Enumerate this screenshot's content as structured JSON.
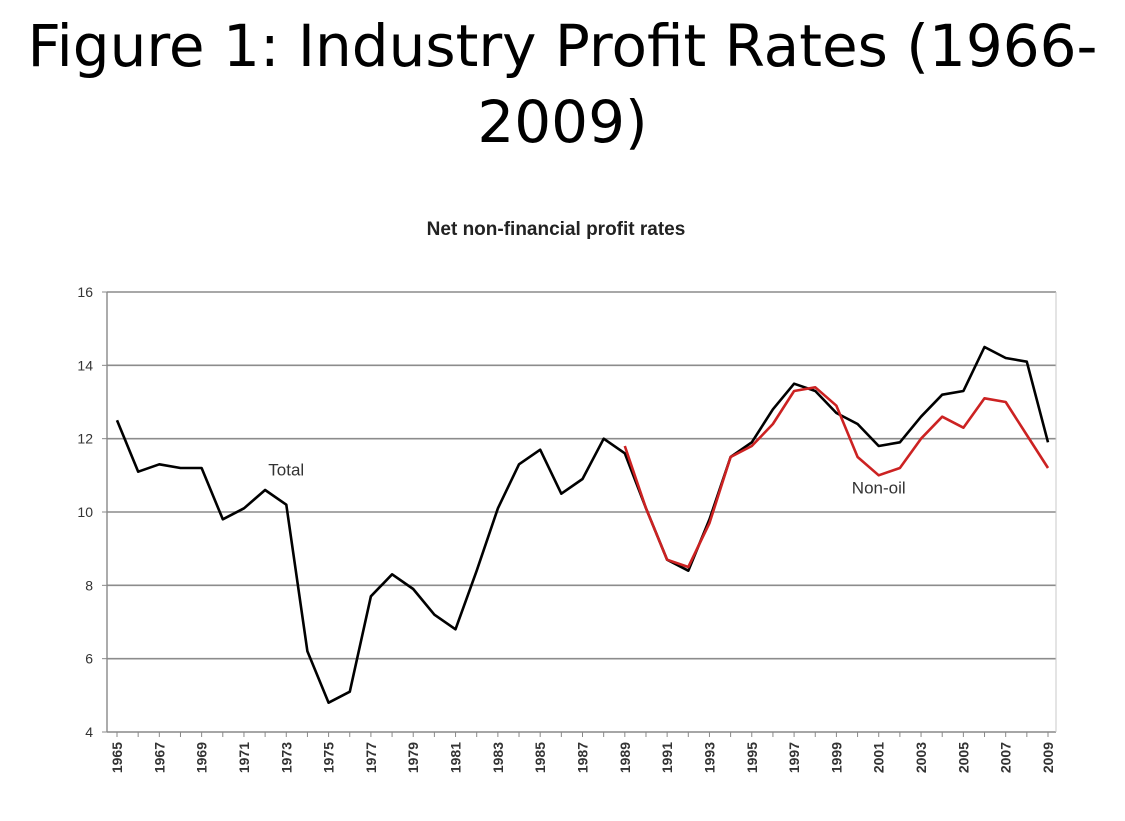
{
  "slide": {
    "title_line1": "Figure 1: Industry Profit Rates (1966-",
    "title_line2": "2009)"
  },
  "chart_data": {
    "type": "line",
    "title": "Net non-financial profit rates",
    "xlabel": "",
    "ylabel": "",
    "ylim": [
      4,
      16
    ],
    "yticks": [
      4,
      6,
      8,
      10,
      12,
      14,
      16
    ],
    "grid": true,
    "x_range": [
      1965,
      2009
    ],
    "xtick_labels": [
      "1965",
      "1967",
      "1969",
      "1971",
      "1973",
      "1975",
      "1977",
      "1979",
      "1981",
      "1983",
      "1985",
      "1987",
      "1989",
      "1991",
      "1993",
      "1995",
      "1997",
      "1999",
      "2001",
      "2003",
      "2005",
      "2007",
      "2009"
    ],
    "series": [
      {
        "name": "Total",
        "color": "#000000",
        "x": [
          1965,
          1966,
          1967,
          1968,
          1969,
          1970,
          1971,
          1972,
          1973,
          1974,
          1975,
          1976,
          1977,
          1978,
          1979,
          1980,
          1981,
          1982,
          1983,
          1984,
          1985,
          1986,
          1987,
          1988,
          1989,
          1990,
          1991,
          1992,
          1993,
          1994,
          1995,
          1996,
          1997,
          1998,
          1999,
          2000,
          2001,
          2002,
          2003,
          2004,
          2005,
          2006,
          2007,
          2008,
          2009
        ],
        "values": [
          12.5,
          11.1,
          11.3,
          11.2,
          11.2,
          9.8,
          10.1,
          10.6,
          10.2,
          6.2,
          4.8,
          5.1,
          7.7,
          8.3,
          7.9,
          7.2,
          6.8,
          8.4,
          10.1,
          11.3,
          11.7,
          10.5,
          10.9,
          12.0,
          11.6,
          10.1,
          8.7,
          8.4,
          9.8,
          11.5,
          11.9,
          12.8,
          13.5,
          13.3,
          12.7,
          12.4,
          11.8,
          11.9,
          12.6,
          13.2,
          13.3,
          14.5,
          14.2,
          14.1,
          11.9
        ]
      },
      {
        "name": "Non-oil",
        "color": "#cc2222",
        "x": [
          1989,
          1990,
          1991,
          1992,
          1993,
          1994,
          1995,
          1996,
          1997,
          1998,
          1999,
          2000,
          2001,
          2002,
          2003,
          2004,
          2005,
          2006,
          2007,
          2008,
          2009
        ],
        "values": [
          11.8,
          10.1,
          8.7,
          8.5,
          9.7,
          11.5,
          11.8,
          12.4,
          13.3,
          13.4,
          12.9,
          11.5,
          11.0,
          11.2,
          12.0,
          12.6,
          12.3,
          13.1,
          13.0,
          12.1,
          11.2
        ]
      }
    ],
    "annotations": [
      {
        "text": "Total",
        "series": "Total",
        "x": 1973,
        "y": 11.0
      },
      {
        "text": "Non-oil",
        "series": "Non-oil",
        "x": 2001,
        "y": 10.5
      }
    ]
  }
}
